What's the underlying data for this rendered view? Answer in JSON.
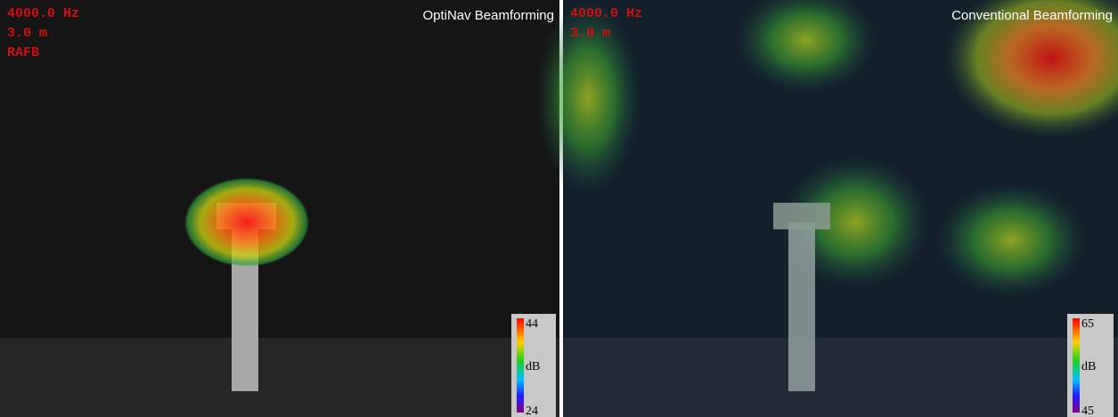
{
  "panels": [
    {
      "overlay": [
        "4000.0 Hz",
        "3.0 m",
        "RAFB"
      ],
      "title": "OptiNav Beamforming",
      "colorbar": {
        "max": 44,
        "unit": "dB",
        "min": 24
      }
    },
    {
      "overlay": [
        "4000.0 Hz",
        "3.0 m"
      ],
      "title": "Conventional Beamforming",
      "colorbar": {
        "max": 65,
        "unit": "dB",
        "min": 45
      }
    }
  ]
}
